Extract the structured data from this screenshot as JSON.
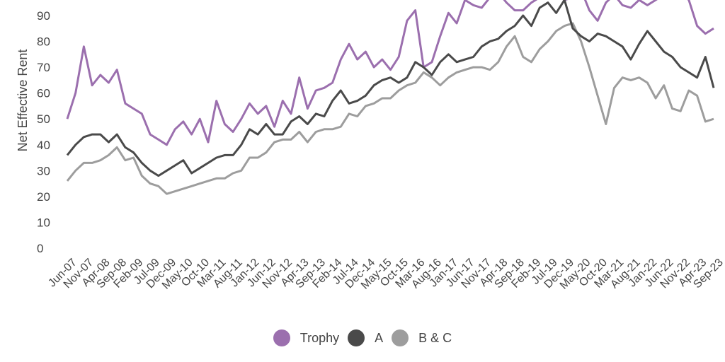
{
  "chart_data": {
    "type": "line",
    "title": "",
    "xlabel": "",
    "ylabel": "Net Effective Rent",
    "ylim": [
      0,
      90
    ],
    "yticks": [
      0,
      10,
      20,
      30,
      40,
      50,
      60,
      70,
      80,
      90
    ],
    "grid": false,
    "legend_position": "bottom",
    "x_tick_labels": [
      "Jun-07",
      "Nov-07",
      "Apr-08",
      "Sep-08",
      "Feb-09",
      "Jul-09",
      "Dec-09",
      "May-10",
      "Oct-10",
      "Mar-11",
      "Aug-11",
      "Jan-12",
      "Jun-12",
      "Nov-12",
      "Apr-13",
      "Sep-13",
      "Feb-14",
      "Jul-14",
      "Dec-14",
      "May-15",
      "Oct-15",
      "Mar-16",
      "Aug-16",
      "Jan-17",
      "Jun-17",
      "Nov-17",
      "Apr-18",
      "Sep-18",
      "Feb-19",
      "Jul-19",
      "Dec-19",
      "May-20",
      "Oct-20",
      "Mar-21",
      "Aug-21",
      "Jan-22",
      "Jun-22",
      "Nov-22",
      "Apr-23",
      "Sep-23"
    ],
    "x": [
      "Jun-07",
      "Sep-07",
      "Nov-07",
      "Feb-08",
      "Apr-08",
      "Jul-08",
      "Sep-08",
      "Dec-08",
      "Feb-09",
      "May-09",
      "Jul-09",
      "Oct-09",
      "Dec-09",
      "Mar-10",
      "May-10",
      "Aug-10",
      "Oct-10",
      "Jan-11",
      "Mar-11",
      "Jun-11",
      "Aug-11",
      "Nov-11",
      "Jan-12",
      "Apr-12",
      "Jun-12",
      "Sep-12",
      "Nov-12",
      "Feb-13",
      "Apr-13",
      "Jul-13",
      "Sep-13",
      "Dec-13",
      "Feb-14",
      "May-14",
      "Jul-14",
      "Oct-14",
      "Dec-14",
      "Mar-15",
      "May-15",
      "Aug-15",
      "Oct-15",
      "Jan-16",
      "Mar-16",
      "Jun-16",
      "Aug-16",
      "Nov-16",
      "Jan-17",
      "Apr-17",
      "Jun-17",
      "Sep-17",
      "Nov-17",
      "Feb-18",
      "Apr-18",
      "Jul-18",
      "Sep-18",
      "Dec-18",
      "Feb-19",
      "May-19",
      "Jul-19",
      "Oct-19",
      "Dec-19",
      "Mar-20",
      "May-20",
      "Aug-20",
      "Oct-20",
      "Jan-21",
      "Mar-21",
      "Jun-21",
      "Aug-21",
      "Nov-21",
      "Jan-22",
      "Apr-22",
      "Jun-22",
      "Sep-22",
      "Nov-22",
      "Feb-23",
      "Apr-23",
      "Jul-23",
      "Sep-23"
    ],
    "series": [
      {
        "name": "Trophy",
        "color": "#9b6fae",
        "values": [
          50,
          60,
          78,
          63,
          67,
          64,
          69,
          56,
          54,
          52,
          44,
          42,
          40,
          46,
          49,
          44,
          50,
          41,
          57,
          48,
          45,
          50,
          56,
          52,
          55,
          47,
          57,
          52,
          66,
          54,
          61,
          62,
          64,
          73,
          79,
          73,
          76,
          70,
          73,
          69,
          74,
          88,
          92,
          70,
          72,
          82,
          91,
          87,
          96,
          94,
          93,
          97,
          99,
          95,
          92,
          92,
          95,
          97,
          100,
          98,
          96,
          97,
          100,
          92,
          88,
          95,
          98,
          94,
          93,
          96,
          94,
          96,
          98,
          97,
          99,
          96,
          86,
          83,
          85
        ]
      },
      {
        "name": "A",
        "color": "#4a4a4a",
        "values": [
          36,
          40,
          43,
          44,
          44,
          41,
          44,
          39,
          37,
          33,
          30,
          28,
          30,
          32,
          34,
          29,
          31,
          33,
          35,
          36,
          36,
          40,
          46,
          44,
          48,
          44,
          44,
          49,
          51,
          48,
          52,
          51,
          57,
          61,
          56,
          57,
          59,
          63,
          65,
          66,
          64,
          66,
          72,
          70,
          67,
          72,
          75,
          72,
          73,
          74,
          78,
          80,
          81,
          84,
          86,
          90,
          86,
          93,
          95,
          91,
          96,
          85,
          82,
          80,
          83,
          82,
          80,
          78,
          73,
          79,
          84,
          80,
          76,
          74,
          70,
          68,
          66,
          74,
          62
        ]
      },
      {
        "name": "B & C",
        "color": "#9d9d9d",
        "values": [
          26,
          30,
          33,
          33,
          34,
          36,
          39,
          34,
          35,
          28,
          25,
          24,
          21,
          22,
          23,
          24,
          25,
          26,
          27,
          27,
          29,
          30,
          35,
          35,
          37,
          41,
          42,
          42,
          45,
          41,
          45,
          46,
          46,
          47,
          52,
          51,
          55,
          56,
          58,
          58,
          61,
          63,
          64,
          68,
          66,
          63,
          66,
          68,
          69,
          70,
          70,
          69,
          72,
          78,
          82,
          74,
          72,
          77,
          80,
          84,
          86,
          87,
          80,
          70,
          59,
          48,
          62,
          66,
          65,
          66,
          64,
          58,
          63,
          54,
          53,
          61,
          59,
          49,
          50
        ]
      }
    ]
  }
}
